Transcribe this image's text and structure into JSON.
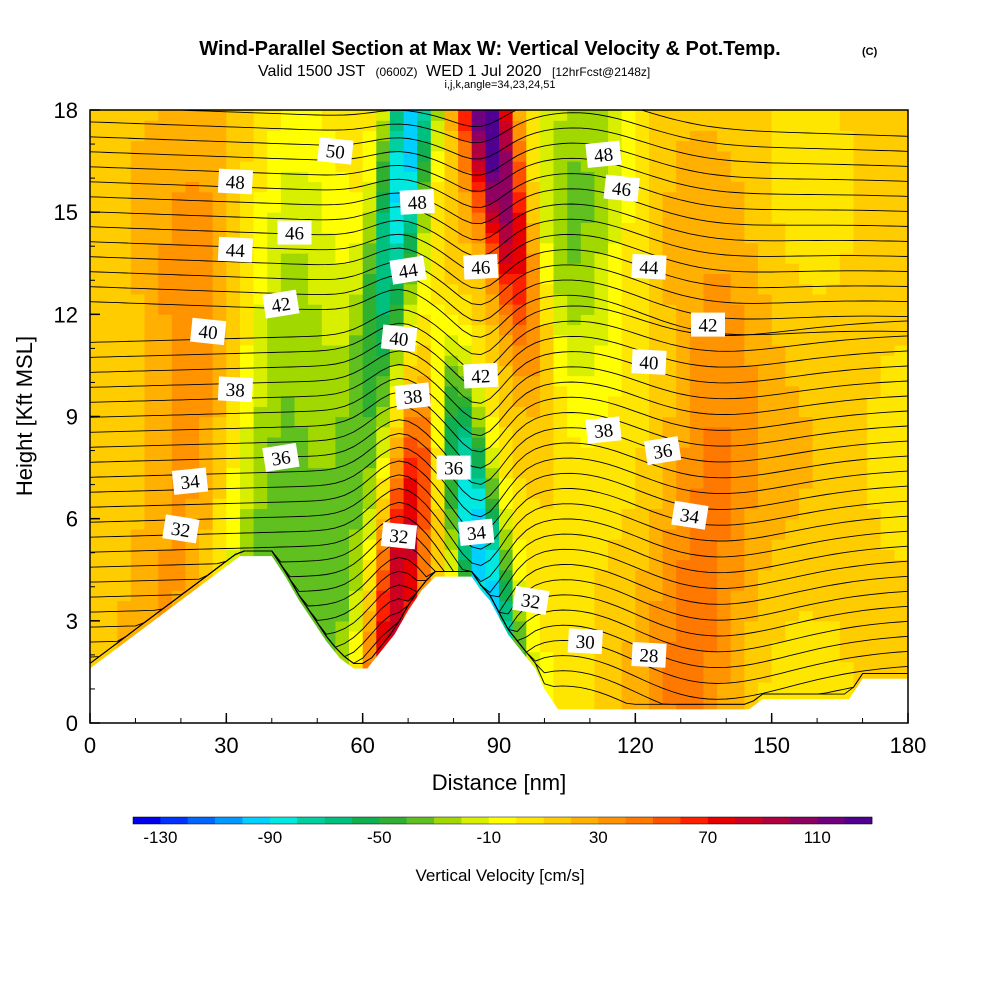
{
  "title": {
    "main": "Wind-Parallel Section at Max W: Vertical Velocity & Pot.Temp.",
    "copyright": "(C)",
    "valid_a": "Valid 1500 JST",
    "valid_utc": "(0600Z)",
    "valid_b": "WED 1 Jul 2020",
    "fcst": "[12hrFcst@2148z]",
    "indices": "i,j,k,angle=34,23,24,51"
  },
  "chart_data": {
    "type": "heatmap",
    "xlabel": "Distance [nm]",
    "ylabel": "Height [Kft MSL]",
    "xlim": [
      0,
      180
    ],
    "ylim": [
      0,
      18
    ],
    "x_ticks": [
      0,
      30,
      60,
      90,
      120,
      150,
      180
    ],
    "y_ticks": [
      0,
      3,
      6,
      9,
      12,
      15,
      18
    ],
    "colorbar": {
      "label": "Vertical Velocity [cm/s]",
      "tick_labels": [
        -130,
        -90,
        -50,
        -10,
        30,
        70,
        110
      ],
      "min": -140,
      "max": 130,
      "step": 10,
      "colors": [
        "#0000ee",
        "#0033ff",
        "#0066ff",
        "#0099ff",
        "#00d0ff",
        "#00e8e0",
        "#00d0a0",
        "#00c080",
        "#10b050",
        "#30b030",
        "#60c020",
        "#a0d800",
        "#d8f000",
        "#ffff00",
        "#ffe600",
        "#ffcc00",
        "#ffb000",
        "#ff9400",
        "#ff7800",
        "#ff5000",
        "#ff2000",
        "#e80000",
        "#cc0020",
        "#b00040",
        "#900060",
        "#700080",
        "#500090"
      ]
    },
    "vertical_velocity_features": [
      {
        "name": "updraft",
        "x": 68,
        "y": 4.5,
        "value": 90
      },
      {
        "name": "updraft",
        "x": 88,
        "y": 17.5,
        "value": 120
      },
      {
        "name": "downdraft",
        "x": 86,
        "y": 5,
        "value": -110
      },
      {
        "name": "downdraft",
        "x": 70,
        "y": 17,
        "value": -110
      },
      {
        "name": "downdraft",
        "x": 40,
        "y": 7,
        "value": -50
      },
      {
        "name": "downdraft",
        "x": 55,
        "y": 4,
        "value": -40
      },
      {
        "name": "downdraft",
        "x": 108,
        "y": 15,
        "value": -40
      },
      {
        "name": "updraft",
        "x": 135,
        "y": 6,
        "value": 35
      },
      {
        "name": "updraft",
        "x": 22,
        "y": 9,
        "value": 30
      }
    ],
    "potential_temperature_labels": [
      {
        "text": "50",
        "x": 54,
        "y": 16.8
      },
      {
        "text": "48",
        "x": 32,
        "y": 15.9
      },
      {
        "text": "48",
        "x": 72,
        "y": 15.3
      },
      {
        "text": "48",
        "x": 113,
        "y": 16.7
      },
      {
        "text": "46",
        "x": 45,
        "y": 14.4
      },
      {
        "text": "46",
        "x": 86,
        "y": 13.4
      },
      {
        "text": "46",
        "x": 117,
        "y": 15.7
      },
      {
        "text": "44",
        "x": 32,
        "y": 13.9
      },
      {
        "text": "44",
        "x": 70,
        "y": 13.3
      },
      {
        "text": "44",
        "x": 123,
        "y": 13.4
      },
      {
        "text": "42",
        "x": 42,
        "y": 12.3
      },
      {
        "text": "42",
        "x": 86,
        "y": 10.2
      },
      {
        "text": "42",
        "x": 136,
        "y": 11.7
      },
      {
        "text": "40",
        "x": 26,
        "y": 11.5
      },
      {
        "text": "40",
        "x": 68,
        "y": 11.3
      },
      {
        "text": "40",
        "x": 123,
        "y": 10.6
      },
      {
        "text": "38",
        "x": 32,
        "y": 9.8
      },
      {
        "text": "38",
        "x": 71,
        "y": 9.6
      },
      {
        "text": "38",
        "x": 113,
        "y": 8.6
      },
      {
        "text": "36",
        "x": 42,
        "y": 7.8
      },
      {
        "text": "36",
        "x": 80,
        "y": 7.5
      },
      {
        "text": "36",
        "x": 126,
        "y": 8
      },
      {
        "text": "34",
        "x": 22,
        "y": 7.1
      },
      {
        "text": "34",
        "x": 85,
        "y": 5.6
      },
      {
        "text": "34",
        "x": 132,
        "y": 6.1
      },
      {
        "text": "32",
        "x": 20,
        "y": 5.7
      },
      {
        "text": "32",
        "x": 68,
        "y": 5.5
      },
      {
        "text": "32",
        "x": 97,
        "y": 3.6
      },
      {
        "text": "30",
        "x": 109,
        "y": 2.4
      },
      {
        "text": "28",
        "x": 123,
        "y": 2
      }
    ],
    "terrain_profile": [
      [
        0,
        1.6
      ],
      [
        3,
        1.9
      ],
      [
        7,
        2.3
      ],
      [
        10,
        2.6
      ],
      [
        13,
        2.9
      ],
      [
        16,
        3.2
      ],
      [
        20,
        3.6
      ],
      [
        24,
        4.0
      ],
      [
        27,
        4.3
      ],
      [
        30,
        4.6
      ],
      [
        33,
        4.9
      ],
      [
        40,
        4.9
      ],
      [
        43,
        4.3
      ],
      [
        46,
        3.6
      ],
      [
        49,
        3.0
      ],
      [
        52,
        2.4
      ],
      [
        55,
        1.9
      ],
      [
        58,
        1.6
      ],
      [
        61,
        1.6
      ],
      [
        64,
        2.1
      ],
      [
        67,
        2.6
      ],
      [
        70,
        3.3
      ],
      [
        73,
        3.9
      ],
      [
        76,
        4.3
      ],
      [
        84,
        4.3
      ],
      [
        86,
        3.9
      ],
      [
        88,
        3.6
      ],
      [
        90,
        3.1
      ],
      [
        92,
        2.6
      ],
      [
        95,
        2.1
      ],
      [
        98,
        1.6
      ],
      [
        100,
        1.0
      ],
      [
        103,
        0.4
      ],
      [
        145,
        0.4
      ],
      [
        148,
        0.7
      ],
      [
        167,
        0.7
      ],
      [
        170,
        1.3
      ],
      [
        180,
        1.3
      ]
    ]
  }
}
